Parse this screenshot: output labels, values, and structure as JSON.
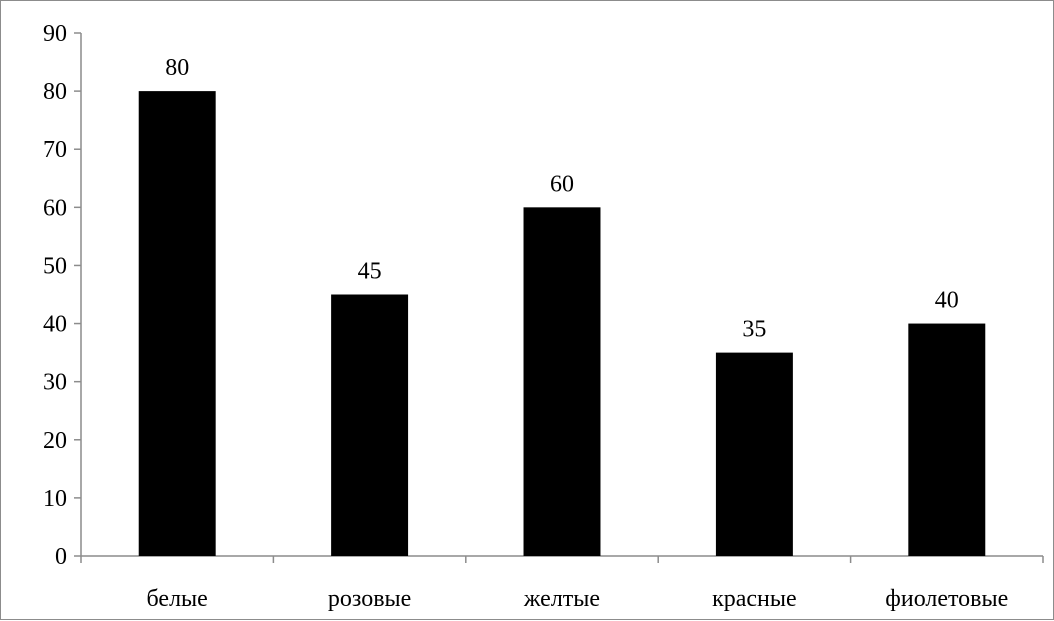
{
  "chart_data": {
    "type": "bar",
    "title": "",
    "xlabel": "",
    "ylabel": "",
    "categories": [
      "белые",
      "розовые",
      "желтые",
      "красные",
      "фиолетовые"
    ],
    "values": [
      80,
      45,
      60,
      35,
      40
    ],
    "ylim": [
      0,
      90
    ],
    "yticks": [
      0,
      10,
      20,
      30,
      40,
      50,
      60,
      70,
      80,
      90
    ],
    "data_labels": true,
    "grid": false,
    "legend": false,
    "bar_color": "#000000"
  }
}
